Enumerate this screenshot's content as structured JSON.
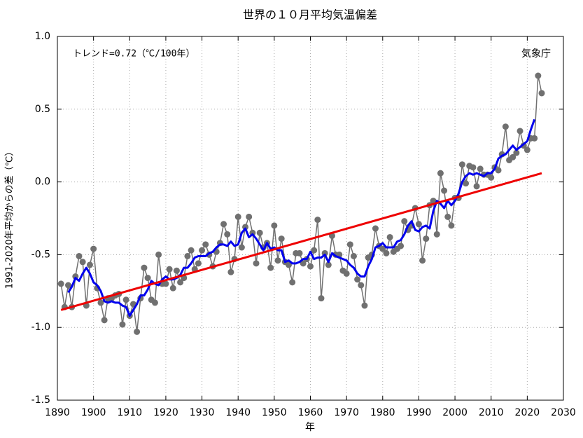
{
  "chart_data": {
    "type": "line",
    "title": "世界の１０月平均気温偏差",
    "xlabel": "年",
    "ylabel": "1991-2020年平均からの差（℃）",
    "annotations": [
      "トレンド=0.72（℃/100年）",
      "気象庁"
    ],
    "x": [
      1891,
      1892,
      1893,
      1894,
      1895,
      1896,
      1897,
      1898,
      1899,
      1900,
      1901,
      1902,
      1903,
      1904,
      1905,
      1906,
      1907,
      1908,
      1909,
      1910,
      1911,
      1912,
      1913,
      1914,
      1915,
      1916,
      1917,
      1918,
      1919,
      1920,
      1921,
      1922,
      1923,
      1924,
      1925,
      1926,
      1927,
      1928,
      1929,
      1930,
      1931,
      1932,
      1933,
      1934,
      1935,
      1936,
      1937,
      1938,
      1939,
      1940,
      1941,
      1942,
      1943,
      1944,
      1945,
      1946,
      1947,
      1948,
      1949,
      1950,
      1951,
      1952,
      1953,
      1954,
      1955,
      1956,
      1957,
      1958,
      1959,
      1960,
      1961,
      1962,
      1963,
      1964,
      1965,
      1966,
      1967,
      1968,
      1969,
      1970,
      1971,
      1972,
      1973,
      1974,
      1975,
      1976,
      1977,
      1978,
      1979,
      1980,
      1981,
      1982,
      1983,
      1984,
      1985,
      1986,
      1987,
      1988,
      1989,
      1990,
      1991,
      1992,
      1993,
      1994,
      1995,
      1996,
      1997,
      1998,
      1999,
      2000,
      2001,
      2002,
      2003,
      2004,
      2005,
      2006,
      2007,
      2008,
      2009,
      2010,
      2011,
      2012,
      2013,
      2014,
      2015,
      2016,
      2017,
      2018,
      2019,
      2020,
      2021,
      2022,
      2023,
      2024
    ],
    "series": [
      {
        "color": "#707070",
        "markers": true,
        "values": [
          -0.7,
          -0.86,
          -0.71,
          -0.86,
          -0.65,
          -0.51,
          -0.55,
          -0.85,
          -0.57,
          -0.46,
          -0.73,
          -0.83,
          -0.95,
          -0.8,
          -0.8,
          -0.78,
          -0.77,
          -0.98,
          -0.81,
          -0.92,
          -0.84,
          -1.03,
          -0.8,
          -0.59,
          -0.66,
          -0.81,
          -0.83,
          -0.5,
          -0.7,
          -0.7,
          -0.6,
          -0.73,
          -0.61,
          -0.69,
          -0.66,
          -0.51,
          -0.47,
          -0.6,
          -0.56,
          -0.47,
          -0.43,
          -0.5,
          -0.58,
          -0.48,
          -0.42,
          -0.29,
          -0.36,
          -0.62,
          -0.53,
          -0.24,
          -0.45,
          -0.31,
          -0.24,
          -0.35,
          -0.56,
          -0.35,
          -0.45,
          -0.42,
          -0.59,
          -0.3,
          -0.54,
          -0.39,
          -0.55,
          -0.57,
          -0.69,
          -0.49,
          -0.49,
          -0.56,
          -0.53,
          -0.58,
          -0.47,
          -0.26,
          -0.8,
          -0.49,
          -0.57,
          -0.37,
          -0.5,
          -0.5,
          -0.61,
          -0.63,
          -0.43,
          -0.51,
          -0.67,
          -0.71,
          -0.85,
          -0.52,
          -0.5,
          -0.32,
          -0.44,
          -0.46,
          -0.49,
          -0.38,
          -0.48,
          -0.46,
          -0.44,
          -0.27,
          -0.33,
          -0.3,
          -0.18,
          -0.29,
          -0.54,
          -0.39,
          -0.16,
          -0.13,
          -0.36,
          0.06,
          -0.06,
          -0.24,
          -0.3,
          -0.11,
          -0.11,
          0.12,
          -0.01,
          0.11,
          0.1,
          -0.03,
          0.09,
          0.05,
          0.05,
          0.03,
          0.1,
          0.08,
          0.19,
          0.38,
          0.15,
          0.17,
          0.2,
          0.35,
          0.25,
          0.22,
          0.3,
          0.3,
          0.73,
          0.61
        ]
      },
      {
        "color": "#0000ee",
        "markers": false,
        "values": [
          null,
          null,
          -0.76,
          -0.72,
          -0.66,
          -0.68,
          -0.63,
          -0.59,
          -0.63,
          -0.69,
          -0.71,
          -0.75,
          -0.82,
          -0.83,
          -0.82,
          -0.83,
          -0.83,
          -0.85,
          -0.86,
          -0.92,
          -0.88,
          -0.84,
          -0.78,
          -0.78,
          -0.74,
          -0.68,
          -0.7,
          -0.71,
          -0.67,
          -0.65,
          -0.67,
          -0.67,
          -0.66,
          -0.64,
          -0.59,
          -0.59,
          -0.56,
          -0.52,
          -0.51,
          -0.51,
          -0.51,
          -0.49,
          -0.48,
          -0.45,
          -0.43,
          -0.43,
          -0.44,
          -0.41,
          -0.44,
          -0.43,
          -0.35,
          -0.32,
          -0.38,
          -0.36,
          -0.39,
          -0.43,
          -0.47,
          -0.42,
          -0.46,
          -0.45,
          -0.47,
          -0.47,
          -0.55,
          -0.54,
          -0.56,
          -0.56,
          -0.55,
          -0.53,
          -0.53,
          -0.48,
          -0.53,
          -0.52,
          -0.52,
          -0.5,
          -0.55,
          -0.49,
          -0.51,
          -0.52,
          -0.53,
          -0.54,
          -0.57,
          -0.59,
          -0.63,
          -0.65,
          -0.65,
          -0.58,
          -0.53,
          -0.45,
          -0.44,
          -0.42,
          -0.45,
          -0.45,
          -0.45,
          -0.41,
          -0.4,
          -0.36,
          -0.3,
          -0.27,
          -0.33,
          -0.34,
          -0.31,
          -0.3,
          -0.32,
          -0.2,
          -0.13,
          -0.15,
          -0.18,
          -0.13,
          -0.16,
          -0.13,
          -0.08,
          0.0,
          0.04,
          0.06,
          0.05,
          0.06,
          0.05,
          0.04,
          0.06,
          0.06,
          0.09,
          0.16,
          0.18,
          0.19,
          0.22,
          0.25,
          0.22,
          0.24,
          0.26,
          0.28,
          0.36,
          0.43,
          null,
          null
        ]
      },
      {
        "color": "#ee0000",
        "markers": false,
        "x": [
          1891,
          2024
        ],
        "values": [
          -0.88,
          0.06
        ]
      }
    ],
    "xlim": [
      1890,
      2030
    ],
    "xticks": [
      1890,
      1900,
      1910,
      1920,
      1930,
      1940,
      1950,
      1960,
      1970,
      1980,
      1990,
      2000,
      2010,
      2020,
      2030
    ],
    "ylim": [
      -1.5,
      1.0
    ],
    "yticks": [
      -1.5,
      {
        "value": -1.0,
        "label": "-1.0"
      },
      -0.5,
      {
        "value": 0.0,
        "label": "0.0"
      },
      0.5,
      {
        "value": 1.0,
        "label": "1.0"
      }
    ],
    "grid": true
  }
}
